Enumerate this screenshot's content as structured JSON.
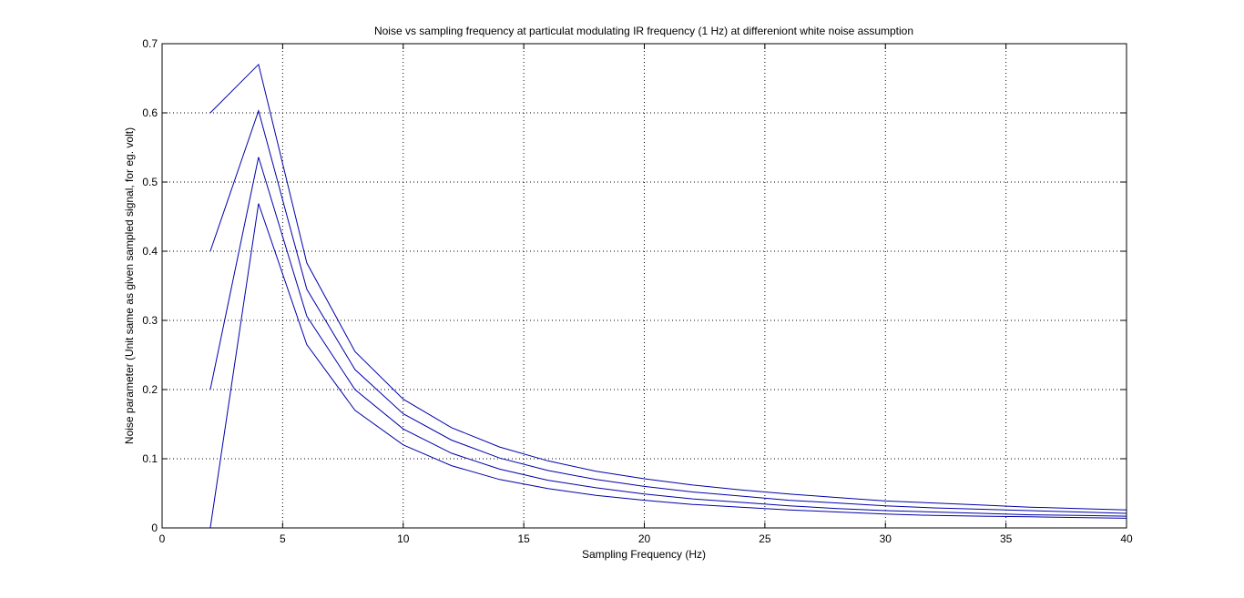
{
  "chart_data": {
    "type": "line",
    "title": "Noise vs sampling frequency at particulat modulating IR frequency (1 Hz) at differeniont white noise assumption",
    "xlabel": "Sampling Frequency (Hz)",
    "ylabel": "Noise parameter (Unit same as given sampled signal, for eg. volt)",
    "xlim": [
      0,
      40
    ],
    "ylim": [
      0,
      0.7
    ],
    "xticks": [
      0,
      5,
      10,
      15,
      20,
      25,
      30,
      35,
      40
    ],
    "yticks": [
      0,
      0.1,
      0.2,
      0.3,
      0.4,
      0.5,
      0.6,
      0.7
    ],
    "xtick_labels": [
      "0",
      "5",
      "10",
      "15",
      "20",
      "25",
      "30",
      "35",
      "40"
    ],
    "ytick_labels": [
      "0",
      "0.1",
      "0.2",
      "0.3",
      "0.4",
      "0.5",
      "0.6",
      "0.7"
    ],
    "grid": true,
    "grid_style": "dotted",
    "line_color": "#0000aa",
    "x": [
      2,
      4,
      6,
      8,
      10,
      12,
      14,
      16,
      18,
      20,
      22,
      24,
      26,
      28,
      30,
      32,
      34,
      36,
      38,
      40
    ],
    "series": [
      {
        "values": [
          0.6,
          0.67,
          0.383,
          0.255,
          0.186,
          0.145,
          0.117,
          0.097,
          0.082,
          0.071,
          0.062,
          0.055,
          0.049,
          0.044,
          0.039,
          0.036,
          0.033,
          0.03,
          0.028,
          0.026
        ]
      },
      {
        "values": [
          0.4,
          0.603,
          0.345,
          0.229,
          0.165,
          0.127,
          0.101,
          0.083,
          0.07,
          0.06,
          0.052,
          0.046,
          0.04,
          0.036,
          0.032,
          0.029,
          0.027,
          0.025,
          0.023,
          0.021
        ]
      },
      {
        "values": [
          0.2,
          0.536,
          0.306,
          0.2,
          0.143,
          0.108,
          0.085,
          0.069,
          0.058,
          0.049,
          0.042,
          0.037,
          0.032,
          0.028,
          0.025,
          0.023,
          0.021,
          0.019,
          0.018,
          0.017
        ]
      },
      {
        "values": [
          0.0,
          0.469,
          0.265,
          0.17,
          0.12,
          0.09,
          0.07,
          0.057,
          0.047,
          0.04,
          0.034,
          0.03,
          0.026,
          0.023,
          0.02,
          0.018,
          0.017,
          0.016,
          0.015,
          0.014
        ]
      }
    ]
  }
}
